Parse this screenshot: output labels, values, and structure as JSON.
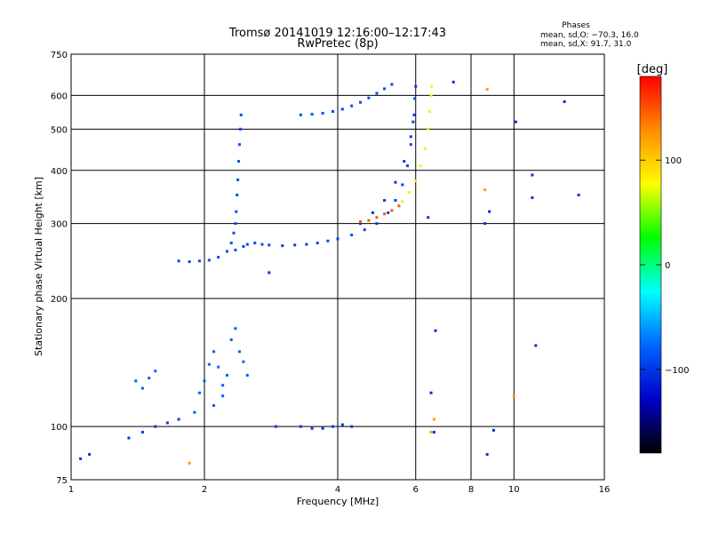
{
  "chart_data": {
    "type": "scatter",
    "title": "Tromsø 20141019 12:16:00–12:17:43",
    "subtitle": "RwPretec (8p)",
    "xlabel": "Frequency [MHz]",
    "ylabel": "Stationary phase Virtual Height [km]",
    "x_scale": "log",
    "y_scale": "log",
    "xlim": [
      1,
      16
    ],
    "ylim": [
      75,
      750
    ],
    "x_ticks": [
      1,
      2,
      4,
      6,
      8,
      10,
      16
    ],
    "x_tick_labels": [
      "1",
      "2",
      "4",
      "6",
      "8",
      "10",
      "16"
    ],
    "y_ticks": [
      75,
      100,
      200,
      300,
      400,
      500,
      600,
      750
    ],
    "y_tick_labels": [
      "75",
      "100",
      "200",
      "300",
      "400",
      "500",
      "600",
      "750"
    ],
    "grid": true,
    "stats": {
      "heading": "Phases",
      "line_o": "mean, sd,O: −70.3, 16.0",
      "line_x": "mean, sd,X:  91.7, 31.0"
    },
    "colorbar": {
      "label": "[deg]",
      "range": [
        -180,
        180
      ],
      "ticks": [
        100,
        0,
        -100
      ],
      "tick_labels": [
        "100",
        "0",
        "−100"
      ],
      "colors": [
        "#ff0000",
        "#ff8c00",
        "#ffff00",
        "#00ff00",
        "#00ffff",
        "#0064ff",
        "#0000c8",
        "#000000"
      ]
    },
    "series": [
      {
        "name": "",
        "phase": -90,
        "points": [
          [
            1.75,
            245
          ],
          [
            1.85,
            244
          ],
          [
            1.95,
            245
          ],
          [
            2.05,
            246
          ],
          [
            2.15,
            250
          ],
          [
            2.25,
            258
          ],
          [
            2.3,
            270
          ],
          [
            2.33,
            285
          ],
          [
            2.35,
            300
          ],
          [
            2.36,
            320
          ],
          [
            2.37,
            350
          ],
          [
            2.38,
            380
          ],
          [
            2.39,
            420
          ],
          [
            2.4,
            460
          ],
          [
            2.41,
            500
          ],
          [
            2.42,
            540
          ],
          [
            2.35,
            260
          ],
          [
            2.45,
            265
          ],
          [
            2.5,
            268
          ],
          [
            2.6,
            270
          ],
          [
            2.7,
            268
          ]
        ]
      },
      {
        "name": "",
        "phase": -95,
        "points": [
          [
            2.8,
            267
          ],
          [
            3.0,
            266
          ],
          [
            3.2,
            267
          ],
          [
            3.4,
            268
          ],
          [
            3.6,
            270
          ],
          [
            3.8,
            273
          ],
          [
            4.0,
            276
          ],
          [
            4.3,
            282
          ],
          [
            4.6,
            290
          ],
          [
            4.9,
            300
          ],
          [
            5.2,
            318
          ],
          [
            5.4,
            340
          ],
          [
            5.6,
            370
          ],
          [
            5.75,
            410
          ],
          [
            5.85,
            460
          ],
          [
            5.92,
            520
          ],
          [
            5.97,
            590
          ],
          [
            6.0,
            630
          ]
        ]
      },
      {
        "name": "",
        "phase": -90,
        "points": [
          [
            3.3,
            540
          ],
          [
            3.5,
            542
          ],
          [
            3.7,
            545
          ],
          [
            3.9,
            550
          ],
          [
            4.1,
            557
          ],
          [
            4.3,
            567
          ],
          [
            4.5,
            578
          ],
          [
            4.7,
            592
          ],
          [
            4.9,
            607
          ],
          [
            5.1,
            622
          ],
          [
            5.3,
            637
          ]
        ]
      },
      {
        "name": "",
        "phase": -100,
        "points": [
          [
            4.5,
            300
          ],
          [
            4.8,
            318
          ],
          [
            5.1,
            340
          ],
          [
            5.4,
            375
          ],
          [
            5.65,
            420
          ],
          [
            5.85,
            480
          ],
          [
            5.95,
            540
          ]
        ]
      },
      {
        "name": "",
        "phase": 150,
        "points": [
          [
            4.5,
            303
          ],
          [
            4.7,
            305
          ],
          [
            4.9,
            310
          ],
          [
            5.1,
            316
          ],
          [
            5.3,
            322
          ],
          [
            5.5,
            330
          ]
        ]
      },
      {
        "name": "",
        "phase": 70,
        "points": [
          [
            5.6,
            338
          ],
          [
            5.8,
            355
          ],
          [
            6.0,
            378
          ],
          [
            6.15,
            410
          ],
          [
            6.3,
            450
          ],
          [
            6.4,
            500
          ],
          [
            6.45,
            550
          ],
          [
            6.5,
            600
          ],
          [
            6.52,
            630
          ]
        ]
      },
      {
        "name": "",
        "phase": -80,
        "points": [
          [
            1.4,
            128
          ],
          [
            1.45,
            123
          ],
          [
            1.5,
            130
          ],
          [
            1.55,
            135
          ],
          [
            1.9,
            108
          ],
          [
            1.95,
            120
          ],
          [
            2.0,
            128
          ],
          [
            2.05,
            140
          ],
          [
            2.1,
            150
          ],
          [
            2.15,
            138
          ],
          [
            2.2,
            125
          ],
          [
            2.25,
            132
          ],
          [
            2.3,
            160
          ],
          [
            2.35,
            170
          ],
          [
            2.4,
            150
          ],
          [
            2.45,
            142
          ],
          [
            2.5,
            132
          ],
          [
            2.1,
            112
          ],
          [
            2.2,
            118
          ]
        ]
      },
      {
        "name": "",
        "phase": -100,
        "points": [
          [
            1.05,
            84
          ],
          [
            1.1,
            86
          ],
          [
            1.35,
            94
          ],
          [
            1.45,
            97
          ],
          [
            1.55,
            100
          ],
          [
            1.65,
            102
          ],
          [
            1.75,
            104
          ],
          [
            2.9,
            100
          ],
          [
            3.3,
            100
          ],
          [
            3.5,
            99
          ],
          [
            3.7,
            99
          ],
          [
            3.9,
            100
          ],
          [
            4.1,
            101
          ],
          [
            4.3,
            100
          ]
        ]
      },
      {
        "name": "",
        "phase": 120,
        "points": [
          [
            1.85,
            82
          ],
          [
            6.5,
            97
          ],
          [
            6.6,
            104
          ],
          [
            10.0,
            118
          ],
          [
            8.6,
            360
          ],
          [
            8.7,
            620
          ]
        ]
      },
      {
        "name": "",
        "phase": -105,
        "points": [
          [
            2.8,
            230
          ],
          [
            6.4,
            310
          ],
          [
            6.6,
            97
          ],
          [
            6.65,
            168
          ],
          [
            6.5,
            120
          ],
          [
            7.3,
            645
          ],
          [
            8.6,
            300
          ],
          [
            8.8,
            320
          ],
          [
            9.0,
            98
          ],
          [
            8.7,
            86
          ],
          [
            10.1,
            520
          ],
          [
            11.0,
            390
          ],
          [
            11.2,
            155
          ],
          [
            11.0,
            345
          ],
          [
            13.0,
            580
          ],
          [
            14.0,
            350
          ]
        ]
      }
    ]
  }
}
